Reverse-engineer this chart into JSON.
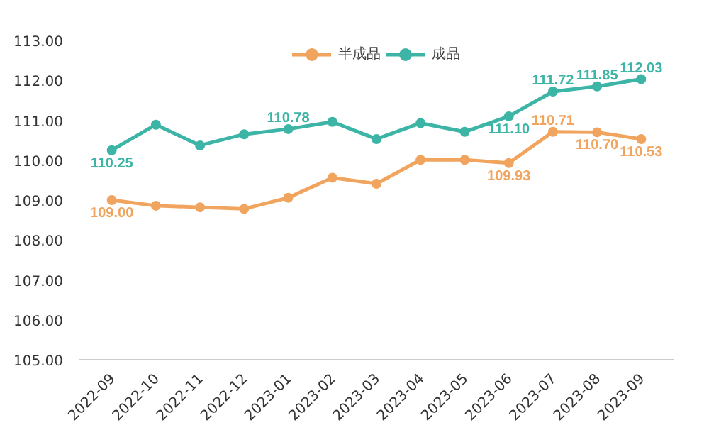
{
  "chart_data": {
    "type": "line",
    "categories": [
      "2022-09",
      "2022-10",
      "2022-11",
      "2022-12",
      "2023-01",
      "2023-02",
      "2023-03",
      "2023-04",
      "2023-05",
      "2023-06",
      "2023-07",
      "2023-08",
      "2023-09"
    ],
    "series": [
      {
        "name": "半成品",
        "color": "#f0a45e",
        "values": [
          109.0,
          108.86,
          108.82,
          108.78,
          109.06,
          109.56,
          109.41,
          110.01,
          110.01,
          109.93,
          110.71,
          110.7,
          110.53
        ],
        "value_labels": [
          "109.00",
          null,
          null,
          null,
          null,
          null,
          null,
          null,
          null,
          "109.93",
          "110.71",
          "110.70",
          "110.53"
        ]
      },
      {
        "name": "成品",
        "color": "#3cb5a6",
        "values": [
          110.25,
          110.89,
          110.37,
          110.65,
          110.78,
          110.96,
          110.53,
          110.93,
          110.71,
          111.1,
          111.72,
          111.85,
          112.03
        ],
        "value_labels": [
          "110.25",
          null,
          null,
          null,
          "110.78",
          null,
          null,
          null,
          null,
          "111.10",
          "111.72",
          "111.85",
          "112.03"
        ]
      }
    ],
    "ylim": [
      105,
      113
    ],
    "yticks": [
      {
        "value": 105,
        "label": "105.00"
      },
      {
        "value": 106,
        "label": "106.00"
      },
      {
        "value": 107,
        "label": "107.00"
      },
      {
        "value": 108,
        "label": "108.00"
      },
      {
        "value": 109,
        "label": "109.00"
      },
      {
        "value": 110,
        "label": "110.00"
      },
      {
        "value": 111,
        "label": "111.00"
      },
      {
        "value": 112,
        "label": "112.00"
      },
      {
        "value": 113,
        "label": "113.00"
      }
    ],
    "grid": false,
    "legend": "top",
    "marker": "circle",
    "line_style": "solid"
  }
}
